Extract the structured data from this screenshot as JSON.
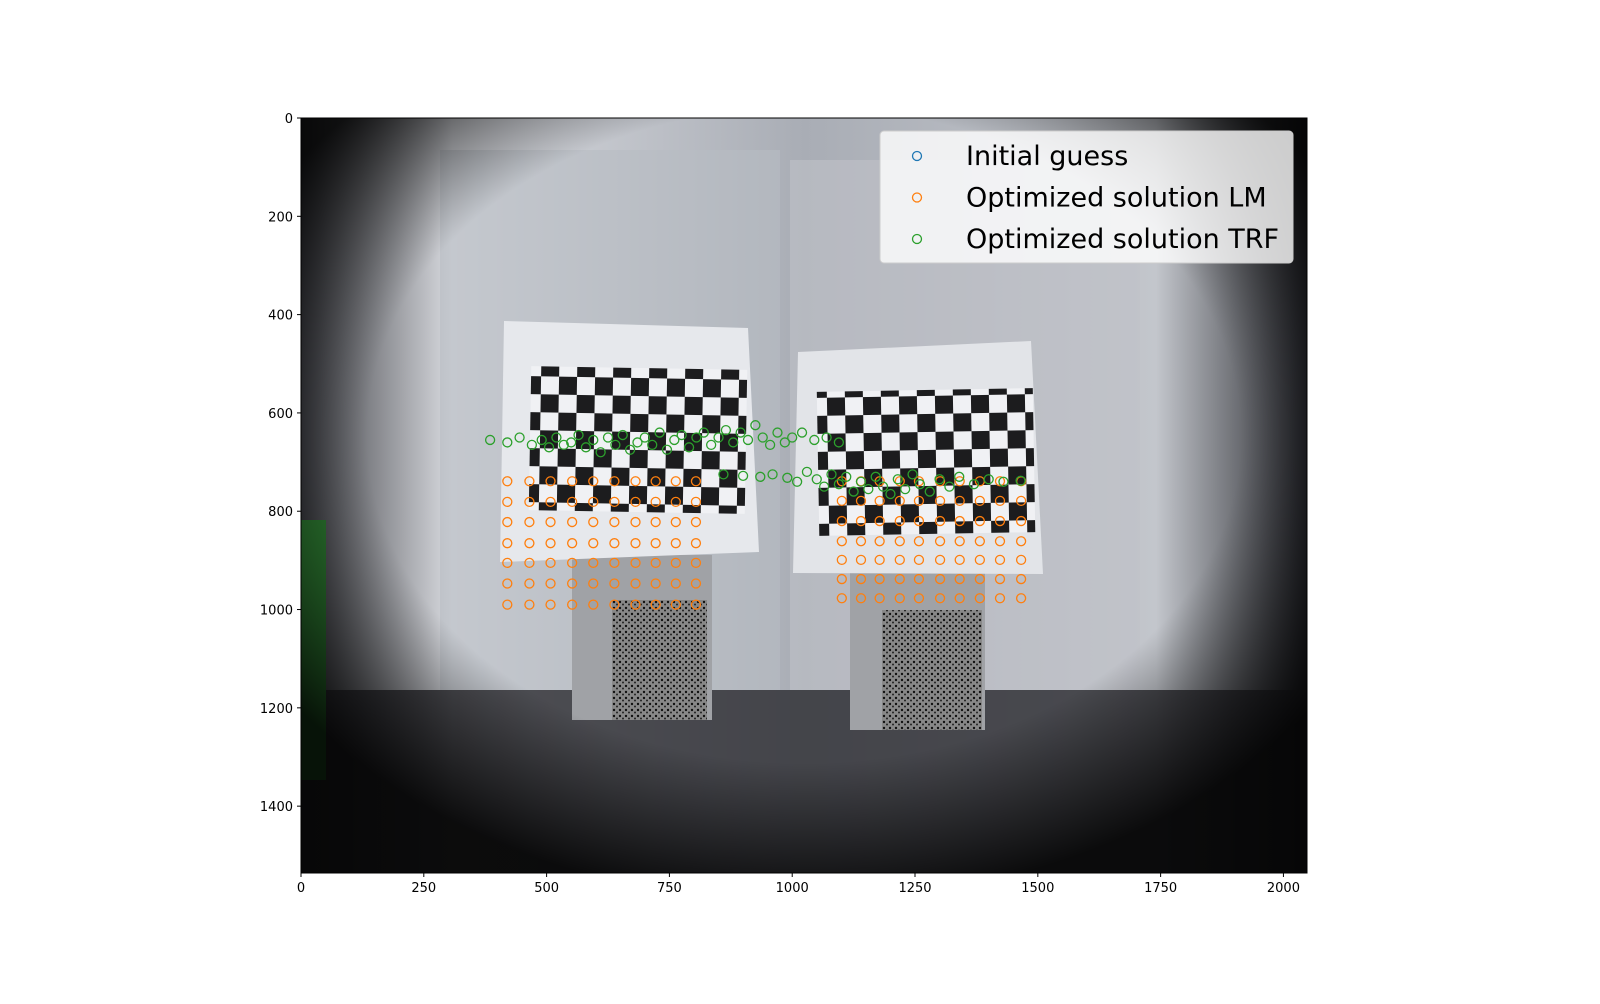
{
  "chart_data": {
    "type": "scatter",
    "xlim": [
      0,
      2048
    ],
    "ylim": [
      1536,
      0
    ],
    "xticks": [
      0,
      250,
      500,
      750,
      1000,
      1250,
      1500,
      1750,
      2000
    ],
    "yticks": [
      0,
      200,
      400,
      600,
      800,
      1000,
      1200,
      1400
    ],
    "legend": "upper right",
    "series": [
      {
        "name": "Initial guess",
        "color": "#1f77b4",
        "x": [],
        "y": []
      },
      {
        "name": "Optimized solution LM",
        "color": "#ff7f0e",
        "x": [
          420,
          465,
          508,
          552,
          595,
          638,
          681,
          722,
          763,
          804,
          420,
          465,
          508,
          552,
          595,
          638,
          681,
          722,
          763,
          804,
          420,
          465,
          508,
          552,
          595,
          638,
          681,
          722,
          763,
          804,
          420,
          465,
          508,
          552,
          595,
          638,
          681,
          722,
          763,
          804,
          420,
          465,
          508,
          552,
          595,
          638,
          681,
          722,
          763,
          804,
          420,
          465,
          508,
          552,
          595,
          638,
          681,
          722,
          763,
          804,
          420,
          465,
          508,
          552,
          595,
          638,
          681,
          722,
          763,
          804,
          1101,
          1140,
          1178,
          1219,
          1258,
          1301,
          1341,
          1382,
          1423,
          1466,
          1101,
          1140,
          1178,
          1219,
          1258,
          1301,
          1341,
          1382,
          1423,
          1466,
          1101,
          1140,
          1178,
          1219,
          1258,
          1301,
          1341,
          1382,
          1423,
          1466,
          1101,
          1140,
          1178,
          1219,
          1258,
          1301,
          1341,
          1382,
          1423,
          1466,
          1101,
          1140,
          1178,
          1219,
          1258,
          1301,
          1341,
          1382,
          1423,
          1466,
          1101,
          1140,
          1178,
          1219,
          1258,
          1301,
          1341,
          1382,
          1423,
          1466,
          1101,
          1140,
          1178,
          1219,
          1258,
          1301,
          1341,
          1382,
          1423,
          1466
        ],
        "y": [
          739,
          739,
          739,
          739,
          739,
          739,
          739,
          739,
          739,
          739,
          781,
          781,
          781,
          781,
          781,
          781,
          781,
          781,
          781,
          781,
          822,
          822,
          822,
          822,
          822,
          822,
          822,
          822,
          822,
          822,
          865,
          865,
          865,
          865,
          865,
          865,
          865,
          865,
          865,
          865,
          905,
          905,
          905,
          905,
          905,
          905,
          905,
          905,
          905,
          905,
          947,
          947,
          947,
          947,
          947,
          947,
          947,
          947,
          947,
          947,
          990,
          990,
          990,
          990,
          990,
          990,
          990,
          990,
          990,
          990,
          739,
          739,
          739,
          739,
          739,
          739,
          739,
          739,
          739,
          739,
          779,
          779,
          779,
          779,
          779,
          779,
          779,
          779,
          779,
          779,
          820,
          820,
          820,
          820,
          820,
          820,
          820,
          820,
          820,
          820,
          861,
          861,
          861,
          861,
          861,
          861,
          861,
          861,
          861,
          861,
          899,
          899,
          899,
          899,
          899,
          899,
          899,
          899,
          899,
          899,
          938,
          938,
          938,
          938,
          938,
          938,
          938,
          938,
          938,
          938,
          977,
          977,
          977,
          977,
          977,
          977,
          977,
          977,
          977,
          977
        ]
      },
      {
        "name": "Optimized solution TRF",
        "color": "#2ca02c",
        "x": [
          385,
          420,
          445,
          470,
          490,
          505,
          520,
          535,
          550,
          565,
          580,
          595,
          610,
          625,
          640,
          655,
          670,
          685,
          700,
          715,
          730,
          745,
          760,
          775,
          790,
          805,
          820,
          835,
          850,
          865,
          880,
          895,
          910,
          925,
          940,
          955,
          970,
          985,
          1000,
          1020,
          1045,
          1070,
          1095,
          860,
          900,
          935,
          960,
          990,
          1010,
          1030,
          1050,
          1065,
          1080,
          1095,
          1110,
          1125,
          1140,
          1155,
          1170,
          1185,
          1200,
          1215,
          1230,
          1245,
          1260,
          1280,
          1300,
          1320,
          1340,
          1370,
          1400,
          1430,
          1465
        ],
        "y": [
          655,
          660,
          650,
          665,
          655,
          670,
          650,
          665,
          660,
          645,
          670,
          655,
          680,
          650,
          665,
          645,
          675,
          660,
          650,
          665,
          640,
          675,
          655,
          645,
          670,
          650,
          640,
          665,
          650,
          635,
          660,
          640,
          655,
          625,
          650,
          665,
          640,
          660,
          650,
          640,
          655,
          650,
          660,
          725,
          728,
          730,
          725,
          732,
          740,
          720,
          735,
          750,
          725,
          745,
          730,
          760,
          740,
          755,
          730,
          750,
          765,
          735,
          755,
          725,
          745,
          760,
          735,
          750,
          730,
          745,
          735,
          740,
          738
        ]
      }
    ]
  }
}
